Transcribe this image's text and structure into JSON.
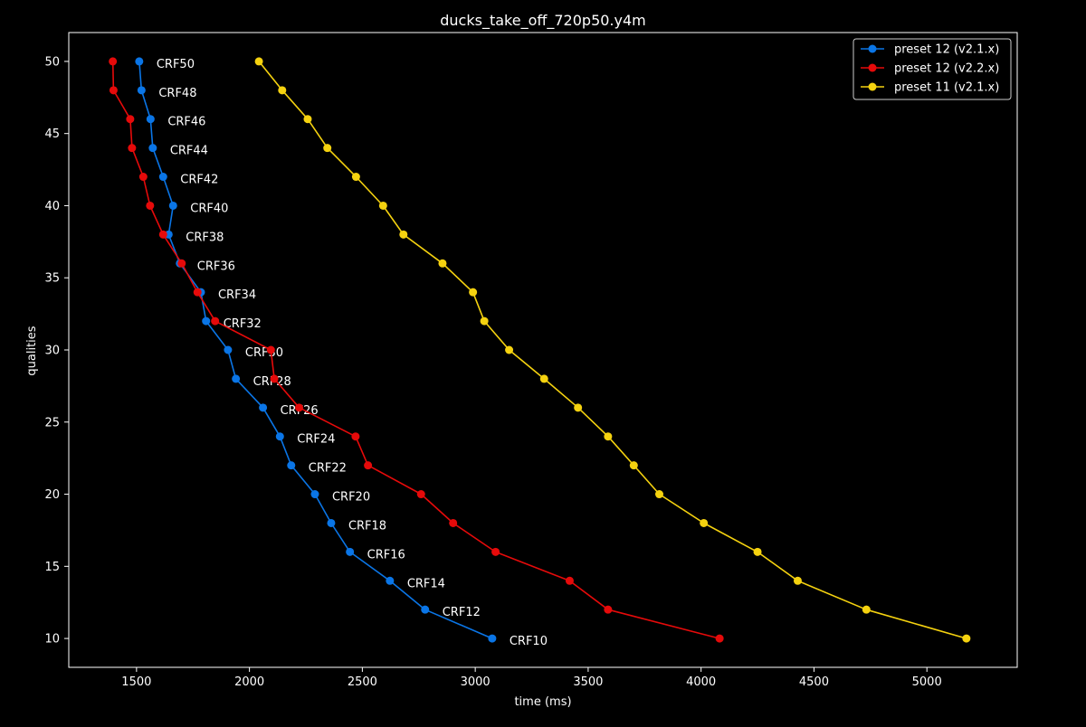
{
  "chart_data": {
    "type": "line",
    "title": "ducks_take_off_720p50.y4m",
    "xlabel": "time (ms)",
    "ylabel": "qualities",
    "xlim": [
      1200,
      5400
    ],
    "ylim": [
      8,
      52
    ],
    "xticks": [
      1500,
      2000,
      2500,
      3000,
      3500,
      4000,
      4500,
      5000
    ],
    "yticks": [
      10,
      15,
      20,
      25,
      30,
      35,
      40,
      45,
      50
    ],
    "grid": false,
    "legend_position": "top-right",
    "background": "#000000",
    "text_color": "#ffffff",
    "series": [
      {
        "name": "preset 12 (v2.1.x)",
        "color": "#0a75e6",
        "labeled": true,
        "points": [
          {
            "x": 3075,
            "y": 10,
            "label": "CRF10"
          },
          {
            "x": 2778,
            "y": 12,
            "label": "CRF12"
          },
          {
            "x": 2622,
            "y": 14,
            "label": "CRF14"
          },
          {
            "x": 2445,
            "y": 16,
            "label": "CRF16"
          },
          {
            "x": 2362,
            "y": 18,
            "label": "CRF18"
          },
          {
            "x": 2290,
            "y": 20,
            "label": "CRF20"
          },
          {
            "x": 2185,
            "y": 22,
            "label": "CRF22"
          },
          {
            "x": 2135,
            "y": 24,
            "label": "CRF24"
          },
          {
            "x": 2060,
            "y": 26,
            "label": "CRF26"
          },
          {
            "x": 1940,
            "y": 28,
            "label": "CRF28"
          },
          {
            "x": 1905,
            "y": 30,
            "label": "CRF30"
          },
          {
            "x": 1808,
            "y": 32,
            "label": "CRF32"
          },
          {
            "x": 1785,
            "y": 34,
            "label": "CRF34"
          },
          {
            "x": 1692,
            "y": 36,
            "label": "CRF36"
          },
          {
            "x": 1642,
            "y": 38,
            "label": "CRF38"
          },
          {
            "x": 1662,
            "y": 40,
            "label": "CRF40"
          },
          {
            "x": 1618,
            "y": 42,
            "label": "CRF42"
          },
          {
            "x": 1572,
            "y": 44,
            "label": "CRF44"
          },
          {
            "x": 1562,
            "y": 46,
            "label": "CRF46"
          },
          {
            "x": 1522,
            "y": 48,
            "label": "CRF48"
          },
          {
            "x": 1512,
            "y": 50,
            "label": "CRF50"
          }
        ]
      },
      {
        "name": "preset 12 (v2.2.x)",
        "color": "#e60a0a",
        "labeled": false,
        "points": [
          {
            "x": 4082,
            "y": 10
          },
          {
            "x": 3588,
            "y": 12
          },
          {
            "x": 3418,
            "y": 14
          },
          {
            "x": 3090,
            "y": 16
          },
          {
            "x": 2902,
            "y": 18
          },
          {
            "x": 2760,
            "y": 20
          },
          {
            "x": 2525,
            "y": 22
          },
          {
            "x": 2470,
            "y": 24
          },
          {
            "x": 2220,
            "y": 26
          },
          {
            "x": 2110,
            "y": 28
          },
          {
            "x": 2095,
            "y": 30
          },
          {
            "x": 1848,
            "y": 32
          },
          {
            "x": 1770,
            "y": 34
          },
          {
            "x": 1700,
            "y": 36
          },
          {
            "x": 1618,
            "y": 38
          },
          {
            "x": 1560,
            "y": 40
          },
          {
            "x": 1530,
            "y": 42
          },
          {
            "x": 1480,
            "y": 44
          },
          {
            "x": 1472,
            "y": 46
          },
          {
            "x": 1398,
            "y": 48
          },
          {
            "x": 1395,
            "y": 50
          }
        ]
      },
      {
        "name": "preset 11 (v2.1.x)",
        "color": "#f5d20f",
        "labeled": false,
        "points": [
          {
            "x": 5175,
            "y": 10
          },
          {
            "x": 4732,
            "y": 12
          },
          {
            "x": 4428,
            "y": 14
          },
          {
            "x": 4250,
            "y": 16
          },
          {
            "x": 4012,
            "y": 18
          },
          {
            "x": 3815,
            "y": 20
          },
          {
            "x": 3702,
            "y": 22
          },
          {
            "x": 3588,
            "y": 24
          },
          {
            "x": 3455,
            "y": 26
          },
          {
            "x": 3305,
            "y": 28
          },
          {
            "x": 3150,
            "y": 30
          },
          {
            "x": 3040,
            "y": 32
          },
          {
            "x": 2990,
            "y": 34
          },
          {
            "x": 2855,
            "y": 36
          },
          {
            "x": 2682,
            "y": 38
          },
          {
            "x": 2592,
            "y": 40
          },
          {
            "x": 2472,
            "y": 42
          },
          {
            "x": 2345,
            "y": 44
          },
          {
            "x": 2258,
            "y": 46
          },
          {
            "x": 2145,
            "y": 48
          },
          {
            "x": 2042,
            "y": 50
          }
        ]
      }
    ]
  }
}
